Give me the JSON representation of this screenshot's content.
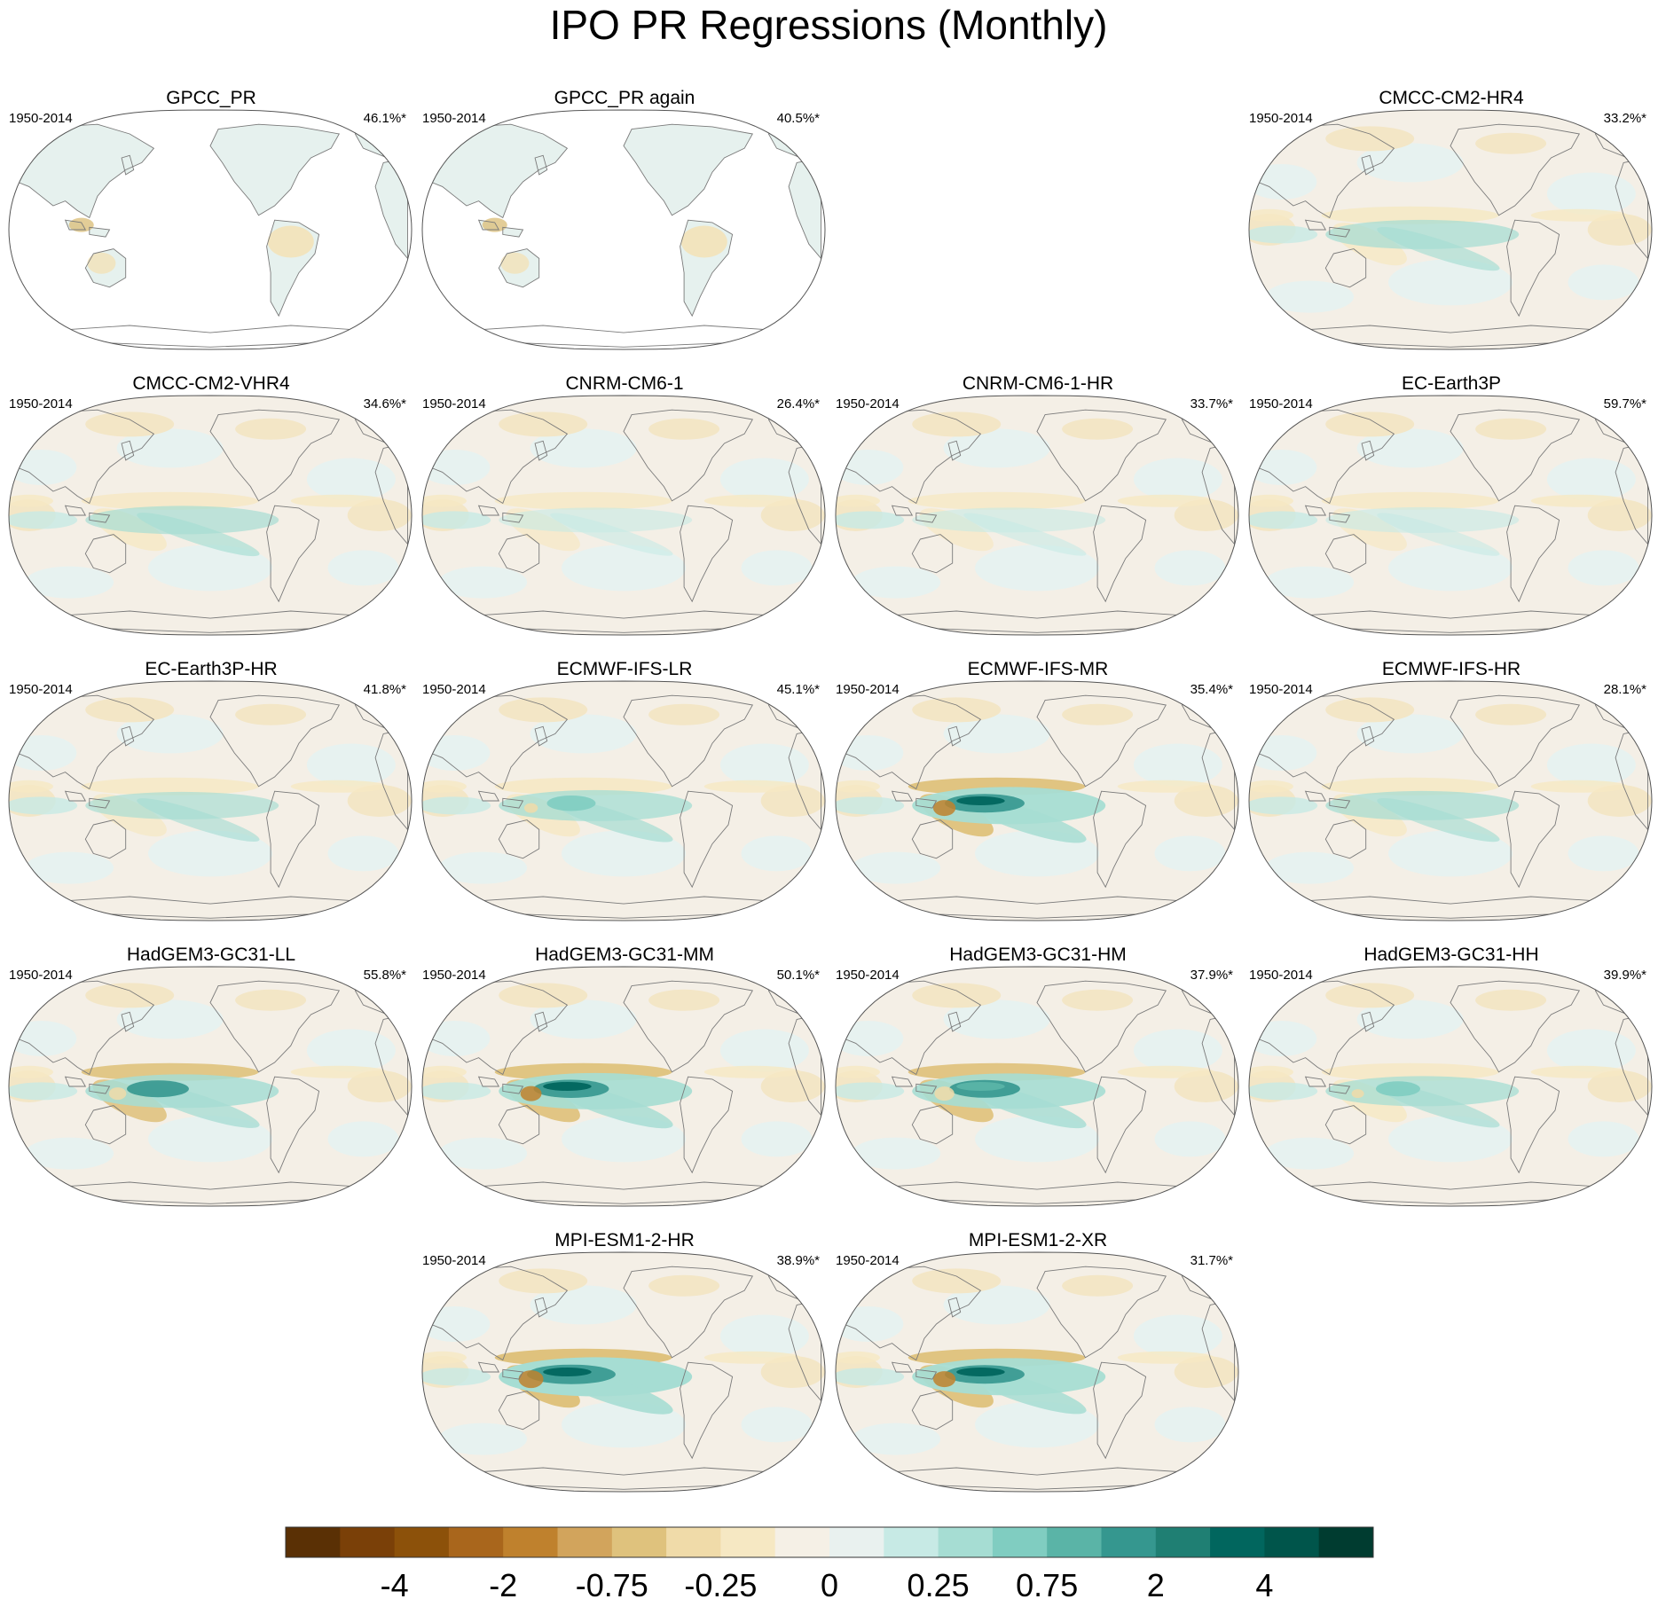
{
  "title": "IPO PR Regressions (Monthly)",
  "chart_data": {
    "type": "heatmap",
    "projection": "robinson",
    "grid": false,
    "panels": [
      {
        "name": "GPCC_PR",
        "period": "1950-2014",
        "percent": "46.1%*",
        "row": 0,
        "col": 0,
        "land_only": true,
        "pattern_strength": 0.15
      },
      {
        "name": "GPCC_PR again",
        "period": "1950-2014",
        "percent": "40.5%*",
        "row": 0,
        "col": 1,
        "land_only": true,
        "pattern_strength": 0.15
      },
      {
        "name": "CMCC-CM2-HR4",
        "period": "1950-2014",
        "percent": "33.2%*",
        "row": 0,
        "col": 3,
        "land_only": false,
        "pattern_strength": 0.45
      },
      {
        "name": "CMCC-CM2-VHR4",
        "period": "1950-2014",
        "percent": "34.6%*",
        "row": 1,
        "col": 0,
        "land_only": false,
        "pattern_strength": 0.4
      },
      {
        "name": "CNRM-CM6-1",
        "period": "1950-2014",
        "percent": "26.4%*",
        "row": 1,
        "col": 1,
        "land_only": false,
        "pattern_strength": 0.2
      },
      {
        "name": "CNRM-CM6-1-HR",
        "period": "1950-2014",
        "percent": "33.7%*",
        "row": 1,
        "col": 2,
        "land_only": false,
        "pattern_strength": 0.2
      },
      {
        "name": "EC-Earth3P",
        "period": "1950-2014",
        "percent": "59.7%*",
        "row": 1,
        "col": 3,
        "land_only": false,
        "pattern_strength": 0.25
      },
      {
        "name": "EC-Earth3P-HR",
        "period": "1950-2014",
        "percent": "41.8%*",
        "row": 2,
        "col": 0,
        "land_only": false,
        "pattern_strength": 0.35
      },
      {
        "name": "ECMWF-IFS-LR",
        "period": "1950-2014",
        "percent": "45.1%*",
        "row": 2,
        "col": 1,
        "land_only": false,
        "pattern_strength": 0.55
      },
      {
        "name": "ECMWF-IFS-MR",
        "period": "1950-2014",
        "percent": "35.4%*",
        "row": 2,
        "col": 2,
        "land_only": false,
        "pattern_strength": 0.9
      },
      {
        "name": "ECMWF-IFS-HR",
        "period": "1950-2014",
        "percent": "28.1%*",
        "row": 2,
        "col": 3,
        "land_only": false,
        "pattern_strength": 0.45
      },
      {
        "name": "HadGEM3-GC31-LL",
        "period": "1950-2014",
        "percent": "55.8%*",
        "row": 3,
        "col": 0,
        "land_only": false,
        "pattern_strength": 0.7
      },
      {
        "name": "HadGEM3-GC31-MM",
        "period": "1950-2014",
        "percent": "50.1%*",
        "row": 3,
        "col": 1,
        "land_only": false,
        "pattern_strength": 0.85
      },
      {
        "name": "HadGEM3-GC31-HM",
        "period": "1950-2014",
        "percent": "37.9%*",
        "row": 3,
        "col": 2,
        "land_only": false,
        "pattern_strength": 0.8
      },
      {
        "name": "HadGEM3-GC31-HH",
        "period": "1950-2014",
        "percent": "39.9%*",
        "row": 3,
        "col": 3,
        "land_only": false,
        "pattern_strength": 0.5
      },
      {
        "name": "MPI-ESM1-2-HR",
        "period": "1950-2014",
        "percent": "38.9%*",
        "row": 4,
        "col": 1,
        "land_only": false,
        "pattern_strength": 1.0
      },
      {
        "name": "MPI-ESM1-2-XR",
        "period": "1950-2014",
        "percent": "31.7%*",
        "row": 4,
        "col": 2,
        "land_only": false,
        "pattern_strength": 0.9
      }
    ],
    "colorbar": {
      "labels": [
        "-4",
        "-2",
        "-0.75",
        "-0.25",
        "0",
        "0.25",
        "0.75",
        "2",
        "4"
      ],
      "colors": [
        "#5a3005",
        "#7a4008",
        "#8c510a",
        "#a9661c",
        "#bf812d",
        "#d2a45c",
        "#dfc27d",
        "#f0dba9",
        "#f6e8c3",
        "#f5f0e6",
        "#e9f1ef",
        "#c7eae5",
        "#a6ddd3",
        "#80cdc1",
        "#5ab4a7",
        "#35978f",
        "#1f7f73",
        "#01665e",
        "#00554b",
        "#003c30"
      ]
    }
  }
}
